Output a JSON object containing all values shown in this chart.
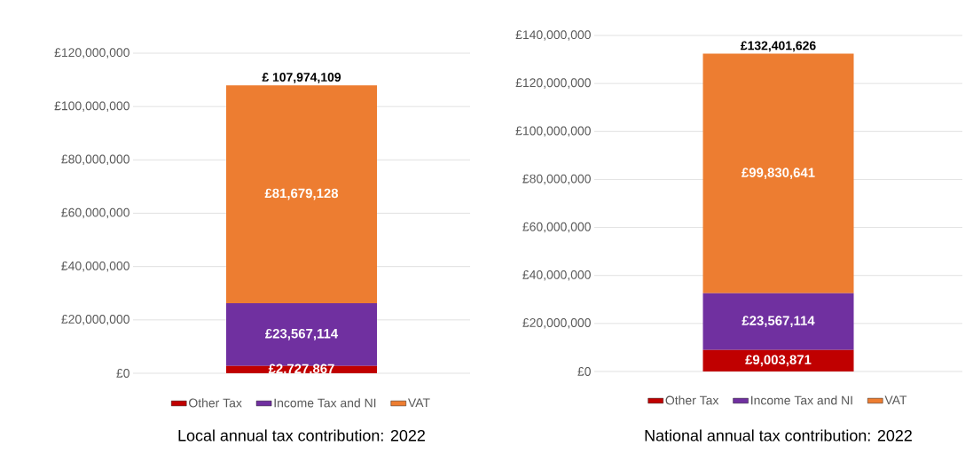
{
  "chart_data": [
    {
      "type": "bar",
      "title": "Local annual tax contribution: 2022",
      "stacked": true,
      "categories": [
        null
      ],
      "series": [
        {
          "name": "Other Tax",
          "color": "#c00000",
          "values": [
            2727867
          ],
          "value_labels": [
            "£2,727,867"
          ]
        },
        {
          "name": "Income Tax and NI",
          "color": "#7030a0",
          "values": [
            23567114
          ],
          "value_labels": [
            "£23,567,114"
          ]
        },
        {
          "name": "VAT",
          "color": "#ed7d31",
          "values": [
            81679128
          ],
          "value_labels": [
            "£81,679,128"
          ]
        }
      ],
      "totals": [
        "£ 107,974,109"
      ],
      "ylim": [
        0,
        120000000
      ],
      "yticks": [
        {
          "value": 0,
          "label": "£0"
        },
        {
          "value": 20000000,
          "label": "£20,000,000"
        },
        {
          "value": 40000000,
          "label": "£40,000,000"
        },
        {
          "value": 60000000,
          "label": "£60,000,000"
        },
        {
          "value": 80000000,
          "label": "£80,000,000"
        },
        {
          "value": 100000000,
          "label": "£100,000,000"
        },
        {
          "value": 120000000,
          "label": "£120,000,000"
        }
      ],
      "grid": "y",
      "legend": "bottom"
    },
    {
      "type": "bar",
      "title": "National annual tax contribution: 2022",
      "stacked": true,
      "categories": [
        null
      ],
      "series": [
        {
          "name": "Other Tax",
          "color": "#c00000",
          "values": [
            9003871
          ],
          "value_labels": [
            "£9,003,871"
          ]
        },
        {
          "name": "Income Tax and NI",
          "color": "#7030a0",
          "values": [
            23567114
          ],
          "value_labels": [
            "£23,567,114"
          ]
        },
        {
          "name": "VAT",
          "color": "#ed7d31",
          "values": [
            99830641
          ],
          "value_labels": [
            "£99,830,641"
          ]
        }
      ],
      "totals": [
        "£132,401,626"
      ],
      "ylim": [
        0,
        140000000
      ],
      "yticks": [
        {
          "value": 0,
          "label": "£0"
        },
        {
          "value": 20000000,
          "label": "£20,000,000"
        },
        {
          "value": 40000000,
          "label": "£40,000,000"
        },
        {
          "value": 60000000,
          "label": "£60,000,000"
        },
        {
          "value": 80000000,
          "label": "£80,000,000"
        },
        {
          "value": 100000000,
          "label": "£100,000,000"
        },
        {
          "value": 120000000,
          "label": "£120,000,000"
        },
        {
          "value": 140000000,
          "label": "£140,000,000"
        }
      ],
      "grid": "y",
      "legend": "bottom"
    }
  ]
}
